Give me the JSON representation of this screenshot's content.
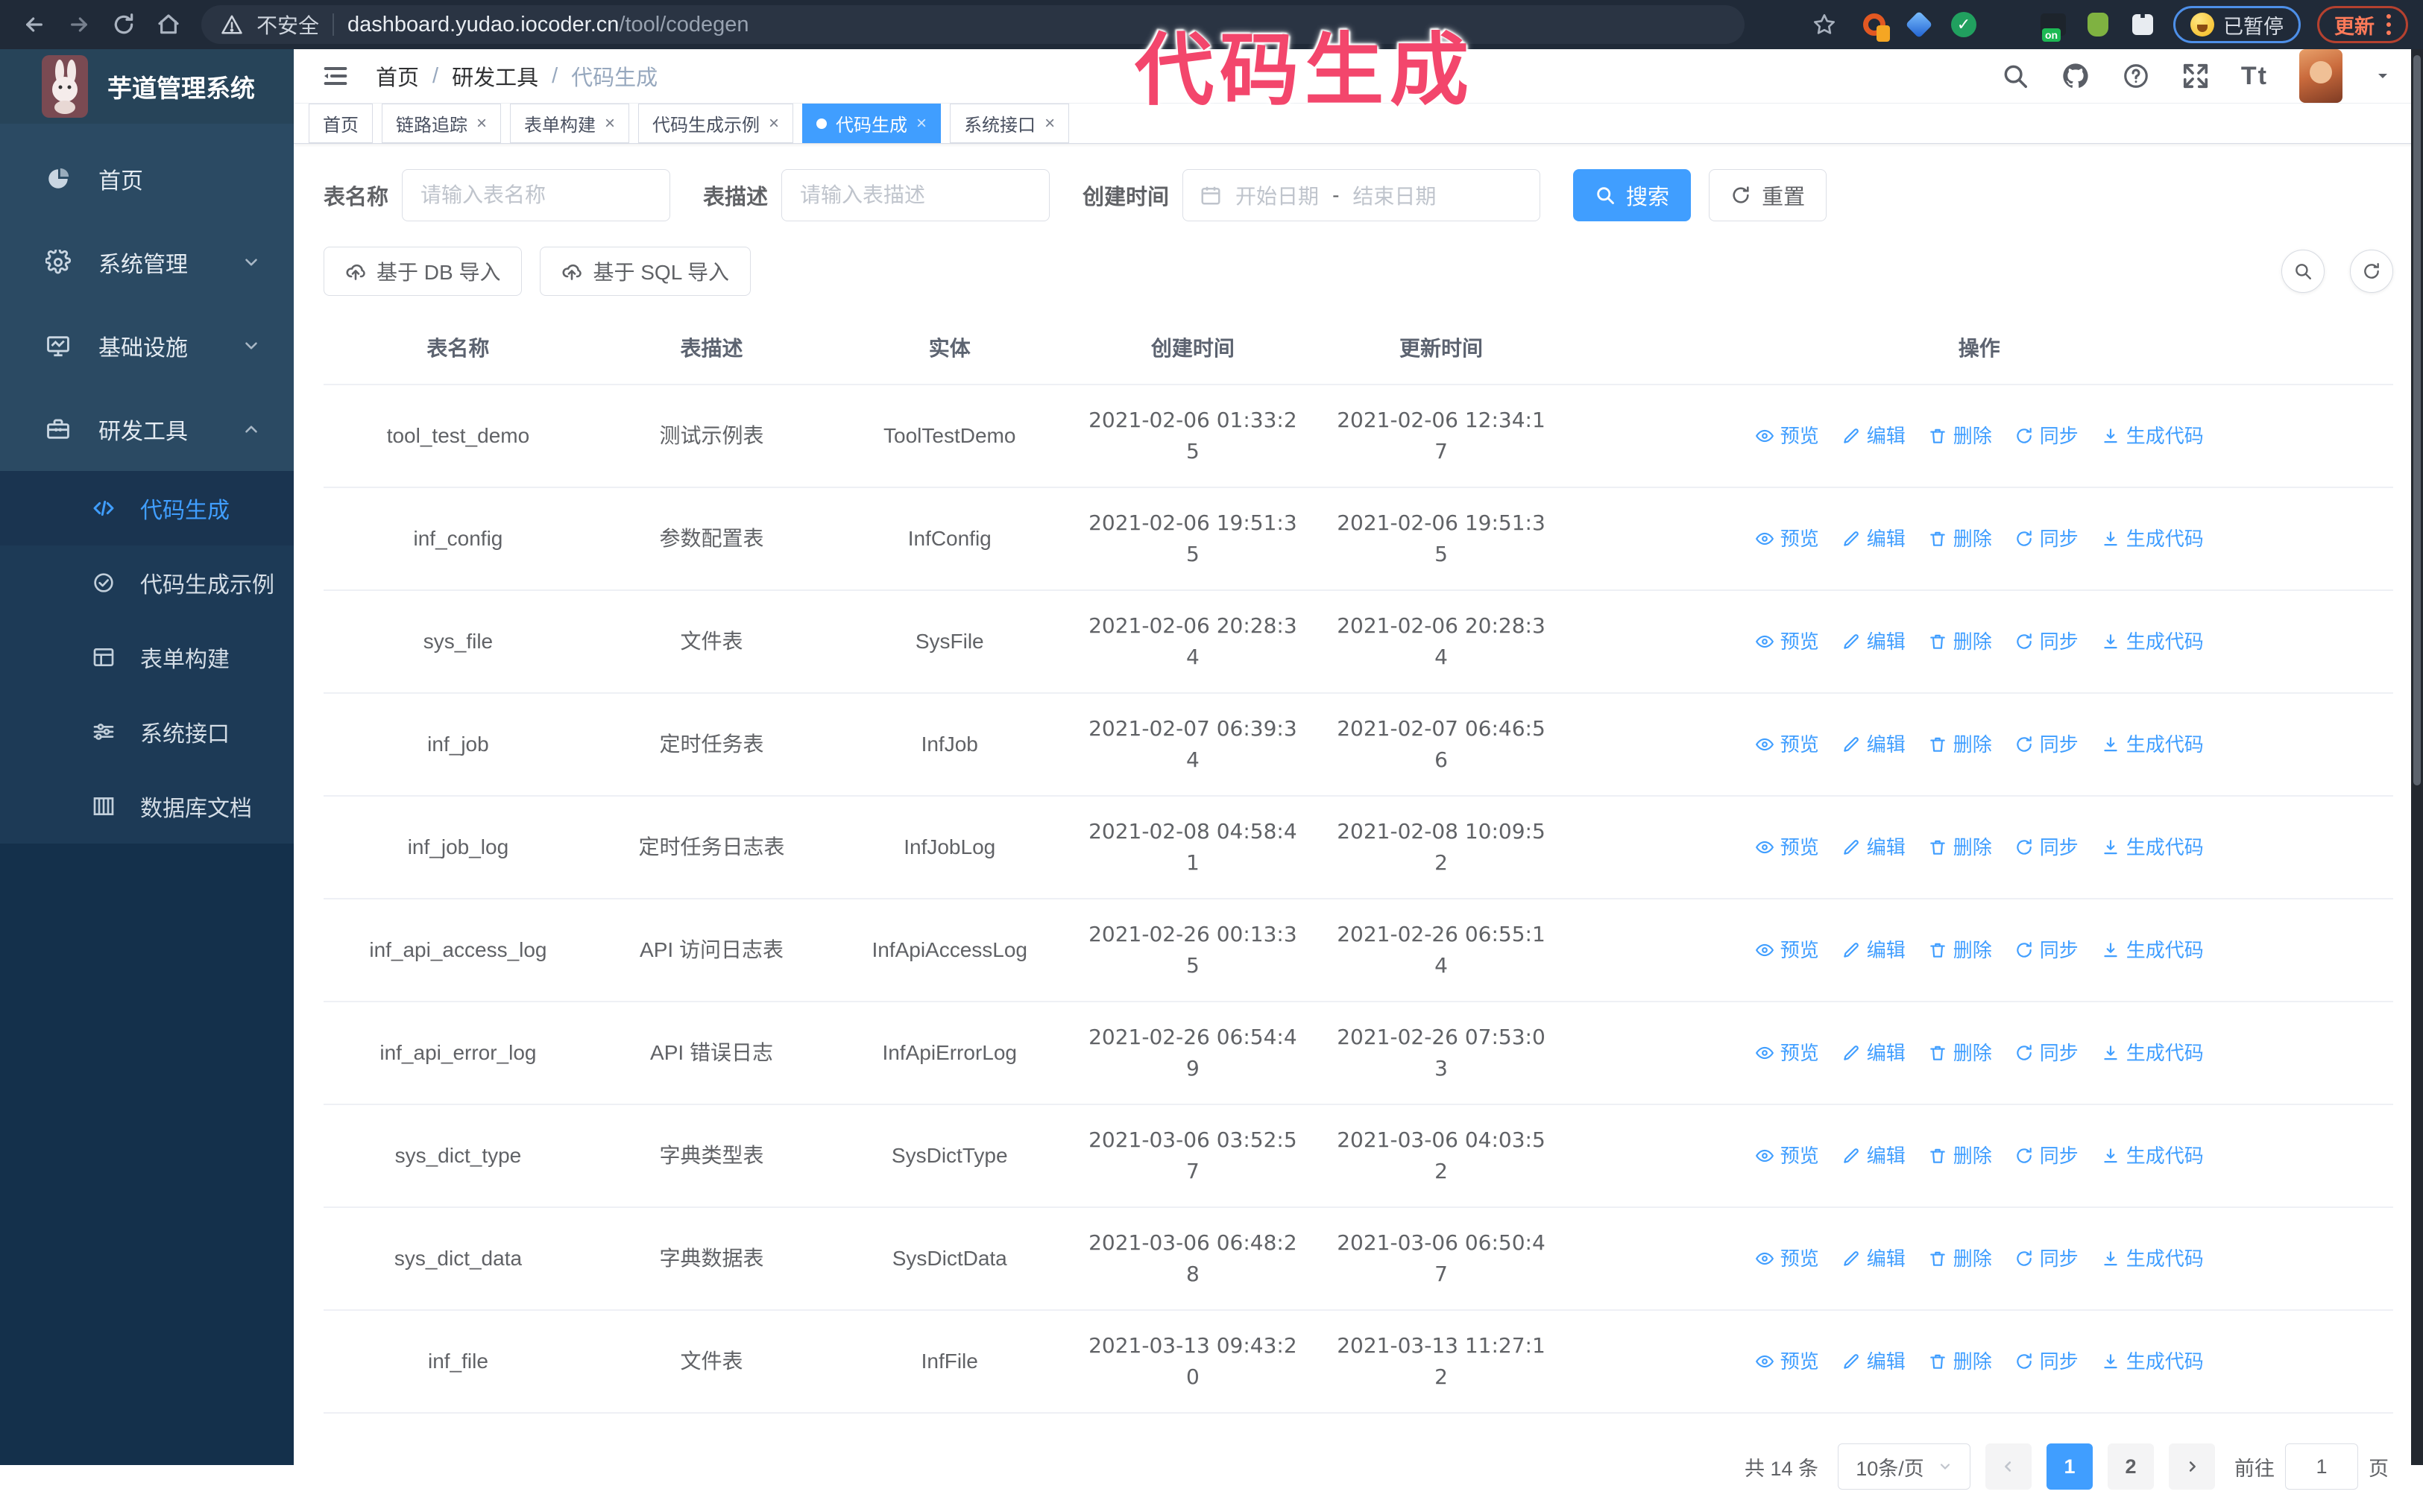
{
  "colors": {
    "accent": "#409eff",
    "annotation": "#f3466c",
    "sidebar_bg": "#2b4a63",
    "submenu_bg": "#1d3a56"
  },
  "annotation": "代码生成",
  "browser": {
    "security_label": "不安全",
    "url_domain": "dashboard.yudao.iocoder.cn",
    "url_path": "/tool/codegen",
    "paused_badge": "已暂停",
    "update_label": "更新"
  },
  "sidebar": {
    "logo_title": "芋道管理系统",
    "items": [
      {
        "label": "首页",
        "icon": "dashboard",
        "type": "item"
      },
      {
        "label": "系统管理",
        "icon": "gear",
        "type": "group",
        "state": "collapsed"
      },
      {
        "label": "基础设施",
        "icon": "monitor",
        "type": "group",
        "state": "collapsed"
      },
      {
        "label": "研发工具",
        "icon": "toolbox",
        "type": "group",
        "state": "expanded"
      }
    ],
    "submenu": [
      {
        "label": "代码生成",
        "icon": "code",
        "active": true
      },
      {
        "label": "代码生成示例",
        "icon": "badge",
        "active": false
      },
      {
        "label": "表单构建",
        "icon": "form",
        "active": false
      },
      {
        "label": "系统接口",
        "icon": "api",
        "active": false
      },
      {
        "label": "数据库文档",
        "icon": "dbdoc",
        "active": false
      }
    ]
  },
  "header": {
    "breadcrumb": [
      "首页",
      "研发工具",
      "代码生成"
    ]
  },
  "tabs": [
    {
      "label": "首页",
      "closable": false,
      "active": false
    },
    {
      "label": "链路追踪",
      "closable": true,
      "active": false
    },
    {
      "label": "表单构建",
      "closable": true,
      "active": false
    },
    {
      "label": "代码生成示例",
      "closable": true,
      "active": false
    },
    {
      "label": "代码生成",
      "closable": true,
      "active": true
    },
    {
      "label": "系统接口",
      "closable": true,
      "active": false
    }
  ],
  "search": {
    "name_label": "表名称",
    "name_placeholder": "请输入表名称",
    "desc_label": "表描述",
    "desc_placeholder": "请输入表描述",
    "time_label": "创建时间",
    "start_placeholder": "开始日期",
    "range_separator": "-",
    "end_placeholder": "结束日期",
    "search_label": "搜索",
    "reset_label": "重置"
  },
  "toolbar": {
    "db_import_label": "基于 DB 导入",
    "sql_import_label": "基于 SQL 导入"
  },
  "table": {
    "columns": [
      "表名称",
      "表描述",
      "实体",
      "创建时间",
      "更新时间",
      "操作"
    ],
    "actions": [
      "预览",
      "编辑",
      "删除",
      "同步",
      "生成代码"
    ],
    "action_icons": [
      "eye",
      "edit",
      "delete",
      "sync",
      "download"
    ],
    "rows": [
      {
        "name": "tool_test_demo",
        "desc": "测试示例表",
        "entity": "ToolTestDemo",
        "created": "2021-02-06 01:33:25",
        "updated": "2021-02-06 12:34:17"
      },
      {
        "name": "inf_config",
        "desc": "参数配置表",
        "entity": "InfConfig",
        "created": "2021-02-06 19:51:35",
        "updated": "2021-02-06 19:51:35"
      },
      {
        "name": "sys_file",
        "desc": "文件表",
        "entity": "SysFile",
        "created": "2021-02-06 20:28:34",
        "updated": "2021-02-06 20:28:34"
      },
      {
        "name": "inf_job",
        "desc": "定时任务表",
        "entity": "InfJob",
        "created": "2021-02-07 06:39:34",
        "updated": "2021-02-07 06:46:56"
      },
      {
        "name": "inf_job_log",
        "desc": "定时任务日志表",
        "entity": "InfJobLog",
        "created": "2021-02-08 04:58:41",
        "updated": "2021-02-08 10:09:52"
      },
      {
        "name": "inf_api_access_log",
        "desc": "API 访问日志表",
        "entity": "InfApiAccessLog",
        "created": "2021-02-26 00:13:35",
        "updated": "2021-02-26 06:55:14"
      },
      {
        "name": "inf_api_error_log",
        "desc": "API 错误日志",
        "entity": "InfApiErrorLog",
        "created": "2021-02-26 06:54:49",
        "updated": "2021-02-26 07:53:03"
      },
      {
        "name": "sys_dict_type",
        "desc": "字典类型表",
        "entity": "SysDictType",
        "created": "2021-03-06 03:52:57",
        "updated": "2021-03-06 04:03:52"
      },
      {
        "name": "sys_dict_data",
        "desc": "字典数据表",
        "entity": "SysDictData",
        "created": "2021-03-06 06:48:28",
        "updated": "2021-03-06 06:50:47"
      },
      {
        "name": "inf_file",
        "desc": "文件表",
        "entity": "InfFile",
        "created": "2021-03-13 09:43:20",
        "updated": "2021-03-13 11:27:12"
      }
    ]
  },
  "pagination": {
    "total": "共 14 条",
    "page_size": "10条/页",
    "pages": [
      "1",
      "2"
    ],
    "active_page": "1",
    "goto_label": "前往",
    "goto_value": "1",
    "page_unit": "页"
  }
}
